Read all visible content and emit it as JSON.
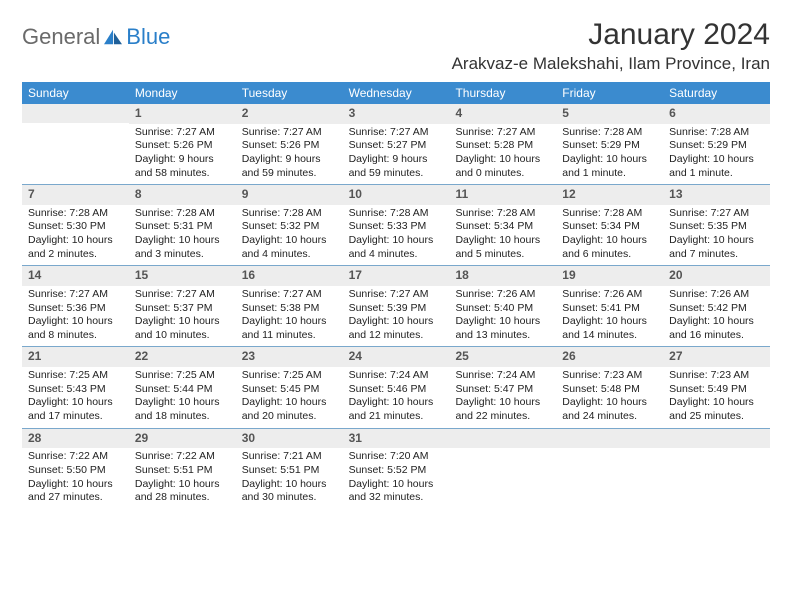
{
  "logo": {
    "general": "General",
    "blue": "Blue"
  },
  "title": "January 2024",
  "location": "Arakvaz-e Malekshahi, Ilam Province, Iran",
  "colors": {
    "header_bg": "#3b8bcf",
    "header_text": "#ffffff",
    "daynum_bg": "#ededed",
    "daynum_text": "#555555",
    "week_border": "#7aa8cc",
    "logo_general": "#6a6a6a",
    "logo_blue": "#2a7fc9",
    "body_text": "#222222"
  },
  "day_headers": [
    "Sunday",
    "Monday",
    "Tuesday",
    "Wednesday",
    "Thursday",
    "Friday",
    "Saturday"
  ],
  "weeks": [
    [
      {
        "n": "",
        "sr": "",
        "ss": "",
        "dl": ""
      },
      {
        "n": "1",
        "sr": "Sunrise: 7:27 AM",
        "ss": "Sunset: 5:26 PM",
        "dl": "Daylight: 9 hours and 58 minutes."
      },
      {
        "n": "2",
        "sr": "Sunrise: 7:27 AM",
        "ss": "Sunset: 5:26 PM",
        "dl": "Daylight: 9 hours and 59 minutes."
      },
      {
        "n": "3",
        "sr": "Sunrise: 7:27 AM",
        "ss": "Sunset: 5:27 PM",
        "dl": "Daylight: 9 hours and 59 minutes."
      },
      {
        "n": "4",
        "sr": "Sunrise: 7:27 AM",
        "ss": "Sunset: 5:28 PM",
        "dl": "Daylight: 10 hours and 0 minutes."
      },
      {
        "n": "5",
        "sr": "Sunrise: 7:28 AM",
        "ss": "Sunset: 5:29 PM",
        "dl": "Daylight: 10 hours and 1 minute."
      },
      {
        "n": "6",
        "sr": "Sunrise: 7:28 AM",
        "ss": "Sunset: 5:29 PM",
        "dl": "Daylight: 10 hours and 1 minute."
      }
    ],
    [
      {
        "n": "7",
        "sr": "Sunrise: 7:28 AM",
        "ss": "Sunset: 5:30 PM",
        "dl": "Daylight: 10 hours and 2 minutes."
      },
      {
        "n": "8",
        "sr": "Sunrise: 7:28 AM",
        "ss": "Sunset: 5:31 PM",
        "dl": "Daylight: 10 hours and 3 minutes."
      },
      {
        "n": "9",
        "sr": "Sunrise: 7:28 AM",
        "ss": "Sunset: 5:32 PM",
        "dl": "Daylight: 10 hours and 4 minutes."
      },
      {
        "n": "10",
        "sr": "Sunrise: 7:28 AM",
        "ss": "Sunset: 5:33 PM",
        "dl": "Daylight: 10 hours and 4 minutes."
      },
      {
        "n": "11",
        "sr": "Sunrise: 7:28 AM",
        "ss": "Sunset: 5:34 PM",
        "dl": "Daylight: 10 hours and 5 minutes."
      },
      {
        "n": "12",
        "sr": "Sunrise: 7:28 AM",
        "ss": "Sunset: 5:34 PM",
        "dl": "Daylight: 10 hours and 6 minutes."
      },
      {
        "n": "13",
        "sr": "Sunrise: 7:27 AM",
        "ss": "Sunset: 5:35 PM",
        "dl": "Daylight: 10 hours and 7 minutes."
      }
    ],
    [
      {
        "n": "14",
        "sr": "Sunrise: 7:27 AM",
        "ss": "Sunset: 5:36 PM",
        "dl": "Daylight: 10 hours and 8 minutes."
      },
      {
        "n": "15",
        "sr": "Sunrise: 7:27 AM",
        "ss": "Sunset: 5:37 PM",
        "dl": "Daylight: 10 hours and 10 minutes."
      },
      {
        "n": "16",
        "sr": "Sunrise: 7:27 AM",
        "ss": "Sunset: 5:38 PM",
        "dl": "Daylight: 10 hours and 11 minutes."
      },
      {
        "n": "17",
        "sr": "Sunrise: 7:27 AM",
        "ss": "Sunset: 5:39 PM",
        "dl": "Daylight: 10 hours and 12 minutes."
      },
      {
        "n": "18",
        "sr": "Sunrise: 7:26 AM",
        "ss": "Sunset: 5:40 PM",
        "dl": "Daylight: 10 hours and 13 minutes."
      },
      {
        "n": "19",
        "sr": "Sunrise: 7:26 AM",
        "ss": "Sunset: 5:41 PM",
        "dl": "Daylight: 10 hours and 14 minutes."
      },
      {
        "n": "20",
        "sr": "Sunrise: 7:26 AM",
        "ss": "Sunset: 5:42 PM",
        "dl": "Daylight: 10 hours and 16 minutes."
      }
    ],
    [
      {
        "n": "21",
        "sr": "Sunrise: 7:25 AM",
        "ss": "Sunset: 5:43 PM",
        "dl": "Daylight: 10 hours and 17 minutes."
      },
      {
        "n": "22",
        "sr": "Sunrise: 7:25 AM",
        "ss": "Sunset: 5:44 PM",
        "dl": "Daylight: 10 hours and 18 minutes."
      },
      {
        "n": "23",
        "sr": "Sunrise: 7:25 AM",
        "ss": "Sunset: 5:45 PM",
        "dl": "Daylight: 10 hours and 20 minutes."
      },
      {
        "n": "24",
        "sr": "Sunrise: 7:24 AM",
        "ss": "Sunset: 5:46 PM",
        "dl": "Daylight: 10 hours and 21 minutes."
      },
      {
        "n": "25",
        "sr": "Sunrise: 7:24 AM",
        "ss": "Sunset: 5:47 PM",
        "dl": "Daylight: 10 hours and 22 minutes."
      },
      {
        "n": "26",
        "sr": "Sunrise: 7:23 AM",
        "ss": "Sunset: 5:48 PM",
        "dl": "Daylight: 10 hours and 24 minutes."
      },
      {
        "n": "27",
        "sr": "Sunrise: 7:23 AM",
        "ss": "Sunset: 5:49 PM",
        "dl": "Daylight: 10 hours and 25 minutes."
      }
    ],
    [
      {
        "n": "28",
        "sr": "Sunrise: 7:22 AM",
        "ss": "Sunset: 5:50 PM",
        "dl": "Daylight: 10 hours and 27 minutes."
      },
      {
        "n": "29",
        "sr": "Sunrise: 7:22 AM",
        "ss": "Sunset: 5:51 PM",
        "dl": "Daylight: 10 hours and 28 minutes."
      },
      {
        "n": "30",
        "sr": "Sunrise: 7:21 AM",
        "ss": "Sunset: 5:51 PM",
        "dl": "Daylight: 10 hours and 30 minutes."
      },
      {
        "n": "31",
        "sr": "Sunrise: 7:20 AM",
        "ss": "Sunset: 5:52 PM",
        "dl": "Daylight: 10 hours and 32 minutes."
      },
      {
        "n": "",
        "sr": "",
        "ss": "",
        "dl": ""
      },
      {
        "n": "",
        "sr": "",
        "ss": "",
        "dl": ""
      },
      {
        "n": "",
        "sr": "",
        "ss": "",
        "dl": ""
      }
    ]
  ]
}
